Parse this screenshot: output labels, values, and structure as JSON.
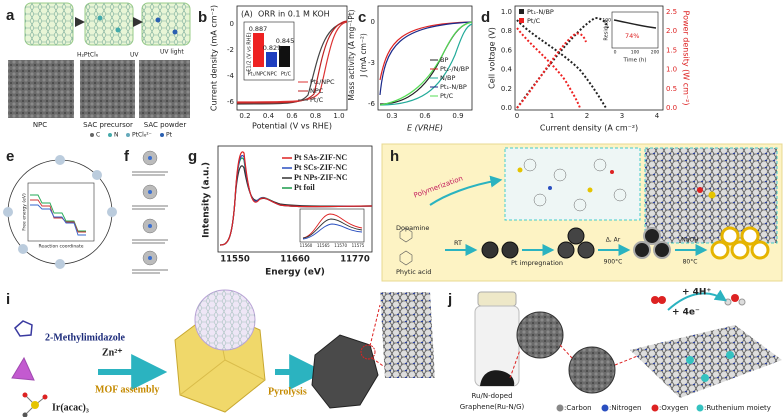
{
  "panels": {
    "a": {
      "label": "a",
      "steps": [
        "NPC",
        "SAC precursor",
        "SAC powder"
      ],
      "reagents": [
        "H₂PtCl₆",
        "UV",
        "UV light"
      ],
      "legend": [
        "C",
        "N",
        "PtCl₆²⁻",
        "Pt"
      ]
    },
    "b": {
      "label": "b",
      "tag": "(A)",
      "title": "ORR in 0.1 M KOH",
      "ylabel": "Current density (mA cm⁻²)",
      "xlabel": "Potential (V vs RHE)",
      "xticks": [
        "0.2",
        "0.4",
        "0.6",
        "0.8",
        "1.0"
      ],
      "yticks": [
        "0",
        "-2",
        "-4",
        "-6"
      ],
      "legend": [
        "Pt₁/NPC",
        "NPC",
        "Pt/C"
      ],
      "inset": {
        "ylabel": "E1/2 (V vs RHE)",
        "value_labels": [
          "0.887",
          "0.829",
          "0.845"
        ],
        "categories": [
          "Pt₁/NPC",
          "NPC",
          "Pt/C"
        ]
      }
    },
    "c": {
      "label": "c",
      "ylabel": "Mass activity (A mg⁻¹Pt)",
      "y2label": "J (mA cm⁻²)",
      "xlabel": "E (VRHE)",
      "xticks": [
        "0.3",
        "0.6",
        "0.9"
      ],
      "yticks": [
        "0",
        "-3",
        "-6"
      ],
      "legend": [
        "BP",
        "Pt₁-/N/BP",
        "N/BP",
        "Pt₁-N/BP",
        "Pt/C"
      ]
    },
    "d": {
      "label": "d",
      "ylabel": "Cell voltage (V)",
      "y2label": "Power density (W cm⁻²)",
      "xlabel": "Current density (A cm⁻²)",
      "xticks": [
        "0",
        "1",
        "2",
        "3",
        "4"
      ],
      "yticks": [
        "0.0",
        "0.2",
        "0.4",
        "0.6",
        "0.8",
        "1.0"
      ],
      "y2ticks": [
        "0.0",
        "0.5",
        "1.0",
        "1.5",
        "2.0",
        "2.5"
      ],
      "legend": [
        "Pt₁-N/BP",
        "Pt/C"
      ],
      "inset": {
        "ylabel": "Residual",
        "xlabel": "Time (h)",
        "note": "74%",
        "xticks": [
          "0",
          "100",
          "200"
        ],
        "yticks": [
          "100"
        ]
      }
    },
    "e": {
      "label": "e",
      "xlabel": "Reaction coordinate",
      "ylabel": "Free energy (eV)"
    },
    "f": {
      "label": "f"
    },
    "g": {
      "label": "g",
      "ylabel": "Intensity (a.u.)",
      "xlabel": "Energy (eV)",
      "xticks": [
        "11550",
        "11660",
        "11770"
      ],
      "inset_xticks": [
        "11560",
        "11565",
        "11570",
        "11575"
      ],
      "legend": [
        "Pt SAs-ZIF-NC",
        "Pt SCs-ZIF-NC",
        "Pt NPs-ZIF-NC",
        "Pt foil"
      ]
    },
    "h": {
      "label": "h",
      "texts": [
        "Polymerization",
        "Dopamine",
        "Phytic acid",
        "RT",
        "Pt impregnation",
        "Δ, Ar",
        "900°C",
        "NaOH",
        "80°C"
      ]
    },
    "i": {
      "label": "i",
      "texts": [
        "2-Methylimidazole",
        "Zn²⁺",
        "MOF assembly",
        "Pyrolysis",
        "Ir(acac)₃"
      ]
    },
    "j": {
      "label": "j",
      "sample": [
        "Ru/N-doped",
        "Graphene(Ru-N/G)"
      ],
      "reaction": [
        "+ 4H⁺",
        "+ 4e⁻"
      ],
      "legend": [
        ":Carbon",
        ":Nitrogen",
        ":Oxygen",
        ":Ruthenium moiety"
      ]
    }
  }
}
